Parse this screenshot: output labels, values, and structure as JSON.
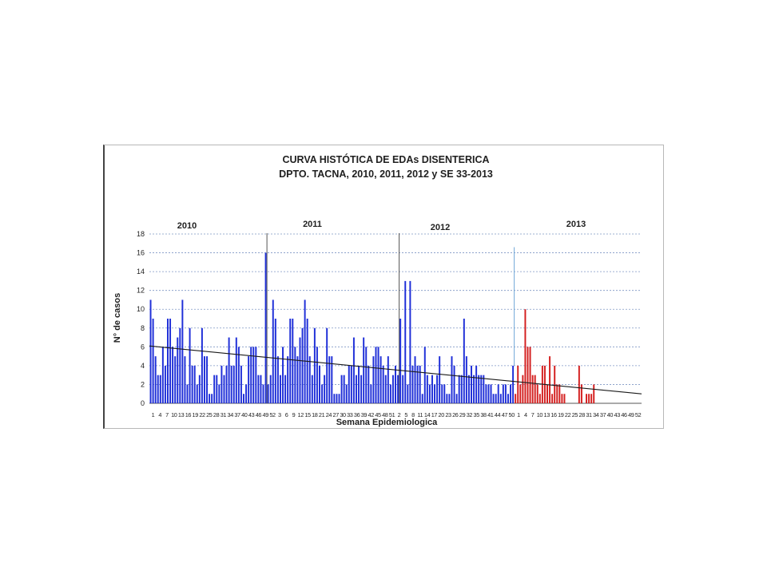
{
  "chart_data": {
    "type": "bar",
    "title": [
      "CURVA HISTÓTICA DE EDAs DISENTERICA",
      "DPTO. TACNA,  2010, 2011, 2012 y SE 33-2013"
    ],
    "xlabel": "Semana Epidemiologica",
    "ylabel": "N° de casos",
    "ylim": [
      0,
      18
    ],
    "yticks": [
      0,
      2,
      4,
      6,
      8,
      10,
      12,
      14,
      16,
      18
    ],
    "grid": true,
    "colors": {
      "past_years": "#1f2fd8",
      "current_year": "#d42020",
      "trend": "#1a1a1a",
      "grid": "#7f96c4",
      "divider_current": "#6ea6d6"
    },
    "years": [
      "2010",
      "2011",
      "2012",
      "2013"
    ],
    "x_tick_labels": [
      "1",
      "4",
      "7",
      "10",
      "13",
      "16",
      "19",
      "22",
      "25",
      "28",
      "31",
      "34",
      "37",
      "40",
      "43",
      "46",
      "49",
      "52",
      "3",
      "6",
      "9",
      "12",
      "15",
      "18",
      "21",
      "24",
      "27",
      "30",
      "33",
      "36",
      "39",
      "42",
      "45",
      "48",
      "51",
      "2",
      "5",
      "8",
      "11",
      "14",
      "17",
      "20",
      "23",
      "26",
      "29",
      "32",
      "35",
      "38",
      "41",
      "44",
      "47",
      "50",
      "1",
      "4",
      "7",
      "10",
      "13",
      "16",
      "19",
      "22",
      "25",
      "28",
      "31",
      "34",
      "37",
      "40",
      "43",
      "46",
      "49",
      "52"
    ],
    "series": [
      {
        "year": "2010",
        "values": [
          11,
          9,
          5,
          3,
          3,
          6,
          4,
          9,
          9,
          6,
          5,
          7,
          8,
          11,
          5,
          2,
          8,
          4,
          4,
          2,
          3,
          8,
          5,
          5,
          1,
          1,
          3,
          3,
          2,
          4,
          3,
          4,
          7,
          4,
          4,
          7,
          6,
          4,
          1,
          2,
          5,
          6,
          6,
          6,
          3,
          3,
          2,
          16
        ]
      },
      {
        "year": "2011",
        "values": [
          2,
          3,
          11,
          9,
          5,
          3,
          6,
          3,
          5,
          9,
          9,
          6,
          5,
          7,
          8,
          11,
          9,
          5,
          3,
          8,
          6,
          4,
          2,
          3,
          8,
          5,
          5,
          1,
          1,
          1,
          3,
          3,
          2,
          4,
          4,
          7,
          3,
          4,
          3,
          7,
          6,
          4,
          2,
          5,
          6,
          6,
          5,
          4,
          3,
          5,
          2,
          3,
          4,
          3
        ]
      },
      {
        "year": "2012",
        "values": [
          9,
          3,
          13,
          2,
          13,
          4,
          5,
          4,
          4,
          1,
          6,
          3,
          2,
          3,
          2,
          3,
          5,
          2,
          2,
          1,
          1,
          5,
          4,
          1,
          3,
          3,
          9,
          5,
          3,
          4,
          3,
          4,
          3,
          3,
          3,
          2,
          2,
          2,
          1,
          1,
          2,
          1,
          2,
          2,
          1,
          2,
          4
        ]
      },
      {
        "year": "2013",
        "values": [
          1,
          4,
          2,
          3,
          10,
          6,
          6,
          3,
          3,
          2,
          1,
          4,
          4,
          2,
          5,
          1,
          4,
          2,
          2,
          1,
          1,
          0,
          0,
          0,
          0,
          0,
          4,
          2,
          0,
          1,
          1,
          1,
          2,
          0,
          0,
          0,
          0,
          0,
          0,
          0,
          0,
          0,
          0,
          0,
          0,
          0,
          0,
          0,
          0,
          0,
          0,
          0
        ]
      }
    ],
    "trend_line": {
      "start": 6.1,
      "end": 1.0
    }
  }
}
